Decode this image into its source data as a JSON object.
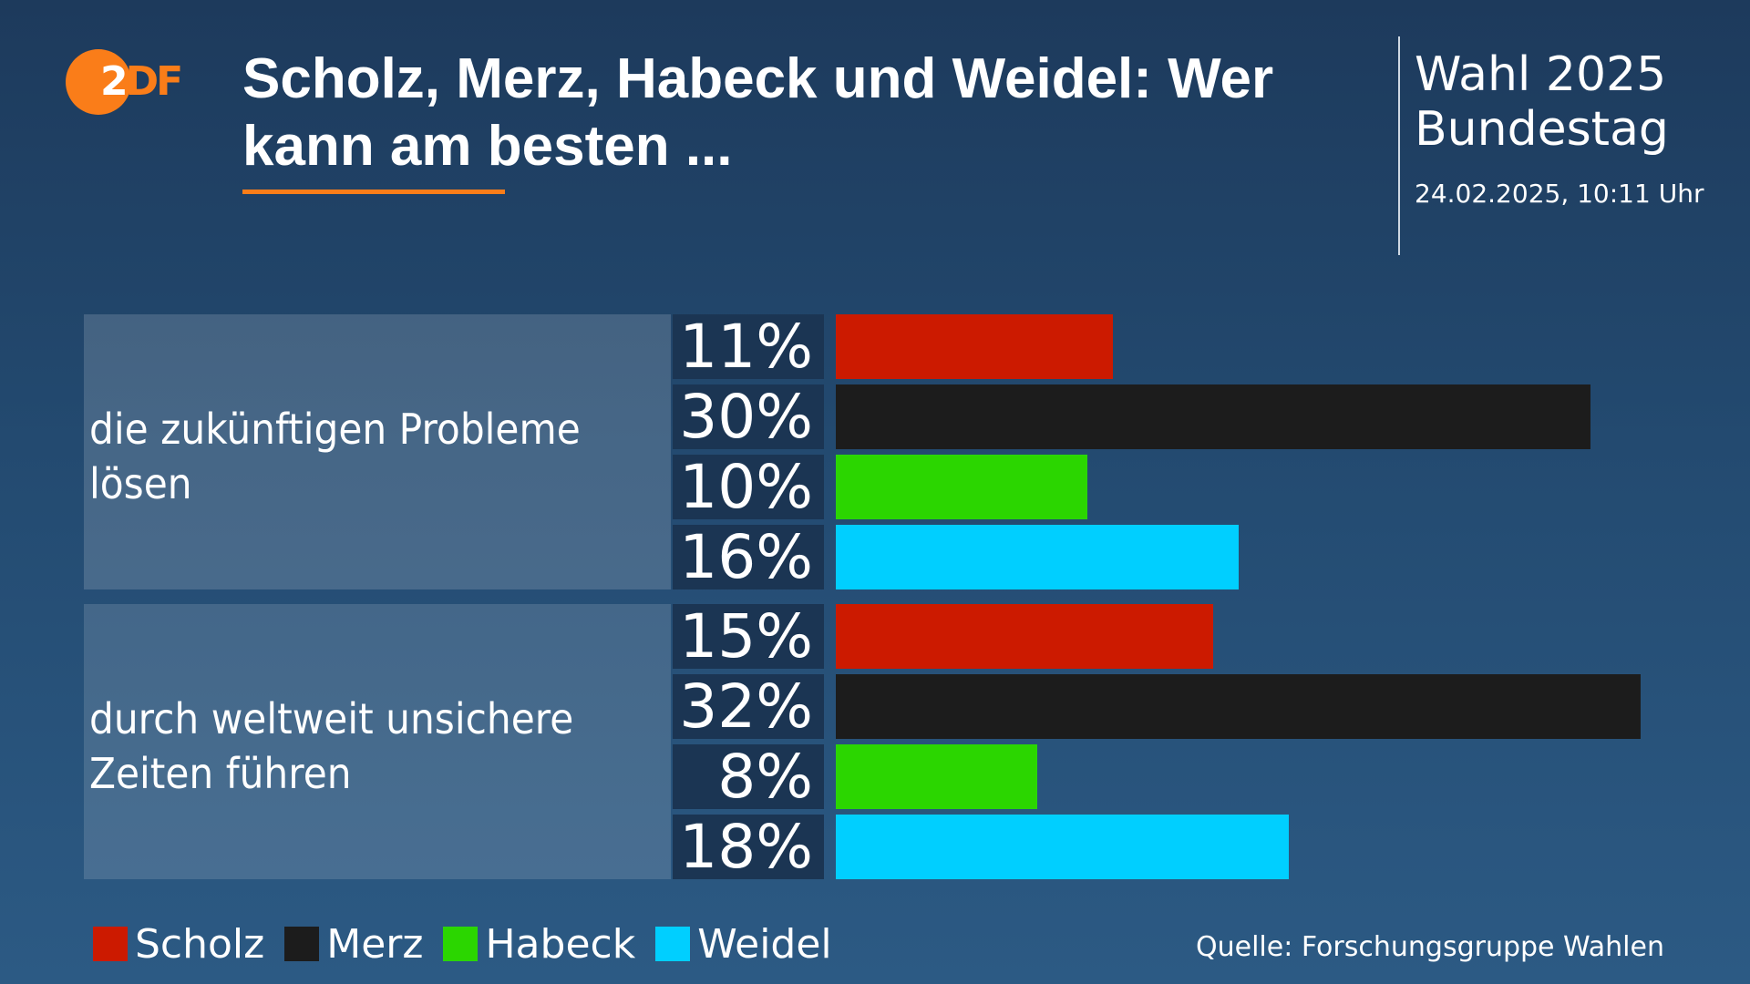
{
  "brand": {
    "logo_text_prefix": "2",
    "logo_text_suffix": "DF",
    "accent": "#fa7d19"
  },
  "header": {
    "title": "Scholz, Merz, Habeck und Weidel: Wer kann am besten ...",
    "election_line1": "Wahl 2025",
    "election_line2": "Bundestag",
    "timestamp": "24.02.2025, 10:11 Uhr"
  },
  "source": "Quelle: Forschungsgruppe Wahlen",
  "chart_data": {
    "type": "bar",
    "orientation": "horizontal",
    "title": "Scholz, Merz, Habeck und Weidel: Wer kann am besten ...",
    "categories": [
      "die zukünftigen Probleme lösen",
      "durch weltweit unsichere Zeiten führen"
    ],
    "series": [
      {
        "name": "Scholz",
        "color": "#cc1a00",
        "values": [
          11,
          15
        ]
      },
      {
        "name": "Merz",
        "color": "#1c1c1c",
        "values": [
          30,
          32
        ]
      },
      {
        "name": "Habeck",
        "color": "#2bd600",
        "values": [
          10,
          8
        ]
      },
      {
        "name": "Weidel",
        "color": "#00cfff",
        "values": [
          16,
          18
        ]
      }
    ],
    "value_suffix": "%",
    "xlim": [
      0,
      32
    ],
    "legend": "bottom-left",
    "grid": false
  }
}
